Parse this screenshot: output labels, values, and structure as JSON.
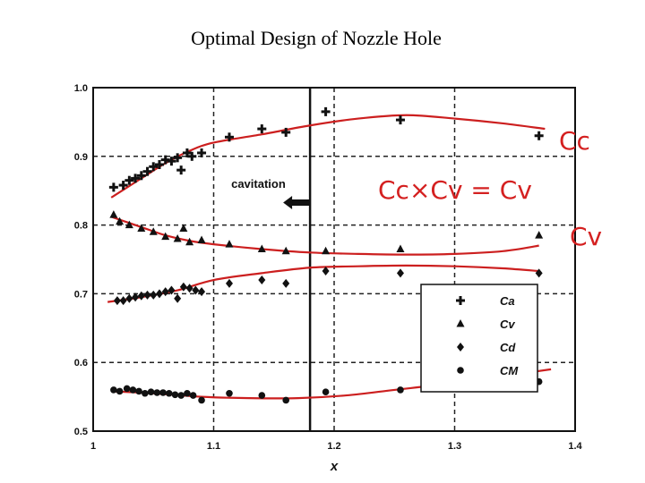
{
  "slide": {
    "title": "Optimal Design of Nozzle Hole"
  },
  "chart_data": {
    "type": "scatter",
    "xlabel": "x",
    "ylabel": "",
    "xlim": [
      1.0,
      1.4
    ],
    "ylim": [
      0.5,
      1.0
    ],
    "x_ticks": [
      "1",
      "1.1",
      "1.2",
      "1.3",
      "1.4"
    ],
    "y_ticks": [
      "0.5",
      "0.6",
      "0.7",
      "0.8",
      "0.9",
      "1.0"
    ],
    "grid": "dashed",
    "legend_position": "bottom-right",
    "cavitation_line_x": 1.18,
    "annotations": {
      "cavitation": "cavitation",
      "formula": "Cc×Cv = Cv"
    },
    "series": [
      {
        "name": "Ca",
        "symbol": "cross",
        "label": "Cc",
        "points": [
          [
            1.017,
            0.855
          ],
          [
            1.025,
            0.858
          ],
          [
            1.03,
            0.865
          ],
          [
            1.035,
            0.868
          ],
          [
            1.04,
            0.872
          ],
          [
            1.045,
            0.878
          ],
          [
            1.05,
            0.885
          ],
          [
            1.055,
            0.888
          ],
          [
            1.06,
            0.895
          ],
          [
            1.065,
            0.893
          ],
          [
            1.07,
            0.898
          ],
          [
            1.073,
            0.88
          ],
          [
            1.078,
            0.905
          ],
          [
            1.082,
            0.9
          ],
          [
            1.09,
            0.905
          ],
          [
            1.113,
            0.928
          ],
          [
            1.14,
            0.94
          ],
          [
            1.16,
            0.935
          ],
          [
            1.193,
            0.965
          ],
          [
            1.255,
            0.953
          ],
          [
            1.37,
            0.93
          ]
        ],
        "fit": [
          [
            1.015,
            0.84
          ],
          [
            1.04,
            0.868
          ],
          [
            1.06,
            0.89
          ],
          [
            1.08,
            0.908
          ],
          [
            1.1,
            0.92
          ],
          [
            1.14,
            0.932
          ],
          [
            1.18,
            0.945
          ],
          [
            1.22,
            0.955
          ],
          [
            1.26,
            0.96
          ],
          [
            1.3,
            0.955
          ],
          [
            1.34,
            0.948
          ],
          [
            1.375,
            0.94
          ]
        ]
      },
      {
        "name": "Cv",
        "symbol": "triangle",
        "label": "Cv",
        "points": [
          [
            1.017,
            0.815
          ],
          [
            1.022,
            0.805
          ],
          [
            1.03,
            0.8
          ],
          [
            1.04,
            0.795
          ],
          [
            1.05,
            0.79
          ],
          [
            1.06,
            0.783
          ],
          [
            1.07,
            0.78
          ],
          [
            1.075,
            0.795
          ],
          [
            1.08,
            0.775
          ],
          [
            1.09,
            0.778
          ],
          [
            1.113,
            0.772
          ],
          [
            1.14,
            0.765
          ],
          [
            1.16,
            0.762
          ],
          [
            1.193,
            0.762
          ],
          [
            1.255,
            0.765
          ],
          [
            1.37,
            0.785
          ]
        ],
        "fit": [
          [
            1.015,
            0.812
          ],
          [
            1.04,
            0.797
          ],
          [
            1.06,
            0.785
          ],
          [
            1.08,
            0.777
          ],
          [
            1.1,
            0.772
          ],
          [
            1.14,
            0.765
          ],
          [
            1.18,
            0.76
          ],
          [
            1.22,
            0.758
          ],
          [
            1.26,
            0.757
          ],
          [
            1.3,
            0.758
          ],
          [
            1.34,
            0.762
          ],
          [
            1.37,
            0.77
          ]
        ]
      },
      {
        "name": "Cd",
        "symbol": "diamond",
        "label": "",
        "points": [
          [
            1.02,
            0.69
          ],
          [
            1.025,
            0.69
          ],
          [
            1.03,
            0.693
          ],
          [
            1.035,
            0.695
          ],
          [
            1.04,
            0.697
          ],
          [
            1.045,
            0.698
          ],
          [
            1.05,
            0.698
          ],
          [
            1.055,
            0.7
          ],
          [
            1.06,
            0.703
          ],
          [
            1.065,
            0.705
          ],
          [
            1.07,
            0.693
          ],
          [
            1.075,
            0.71
          ],
          [
            1.08,
            0.708
          ],
          [
            1.085,
            0.705
          ],
          [
            1.09,
            0.703
          ],
          [
            1.113,
            0.715
          ],
          [
            1.14,
            0.72
          ],
          [
            1.16,
            0.715
          ],
          [
            1.193,
            0.733
          ],
          [
            1.255,
            0.73
          ],
          [
            1.37,
            0.73
          ]
        ],
        "fit": [
          [
            1.012,
            0.688
          ],
          [
            1.04,
            0.695
          ],
          [
            1.07,
            0.705
          ],
          [
            1.1,
            0.72
          ],
          [
            1.14,
            0.73
          ],
          [
            1.18,
            0.738
          ],
          [
            1.22,
            0.74
          ],
          [
            1.26,
            0.741
          ],
          [
            1.3,
            0.74
          ],
          [
            1.34,
            0.737
          ],
          [
            1.37,
            0.733
          ]
        ]
      },
      {
        "name": "CM",
        "symbol": "circle",
        "label": "",
        "points": [
          [
            1.017,
            0.56
          ],
          [
            1.022,
            0.558
          ],
          [
            1.028,
            0.562
          ],
          [
            1.033,
            0.56
          ],
          [
            1.038,
            0.558
          ],
          [
            1.043,
            0.555
          ],
          [
            1.048,
            0.557
          ],
          [
            1.053,
            0.556
          ],
          [
            1.058,
            0.556
          ],
          [
            1.063,
            0.555
          ],
          [
            1.068,
            0.553
          ],
          [
            1.073,
            0.552
          ],
          [
            1.078,
            0.555
          ],
          [
            1.083,
            0.552
          ],
          [
            1.09,
            0.545
          ],
          [
            1.113,
            0.555
          ],
          [
            1.14,
            0.552
          ],
          [
            1.16,
            0.545
          ],
          [
            1.193,
            0.557
          ],
          [
            1.255,
            0.56
          ],
          [
            1.37,
            0.572
          ]
        ],
        "fit": [
          [
            1.015,
            0.558
          ],
          [
            1.05,
            0.555
          ],
          [
            1.09,
            0.55
          ],
          [
            1.13,
            0.548
          ],
          [
            1.17,
            0.548
          ],
          [
            1.21,
            0.552
          ],
          [
            1.25,
            0.56
          ],
          [
            1.29,
            0.568
          ],
          [
            1.33,
            0.578
          ],
          [
            1.36,
            0.585
          ],
          [
            1.38,
            0.59
          ]
        ]
      }
    ]
  }
}
